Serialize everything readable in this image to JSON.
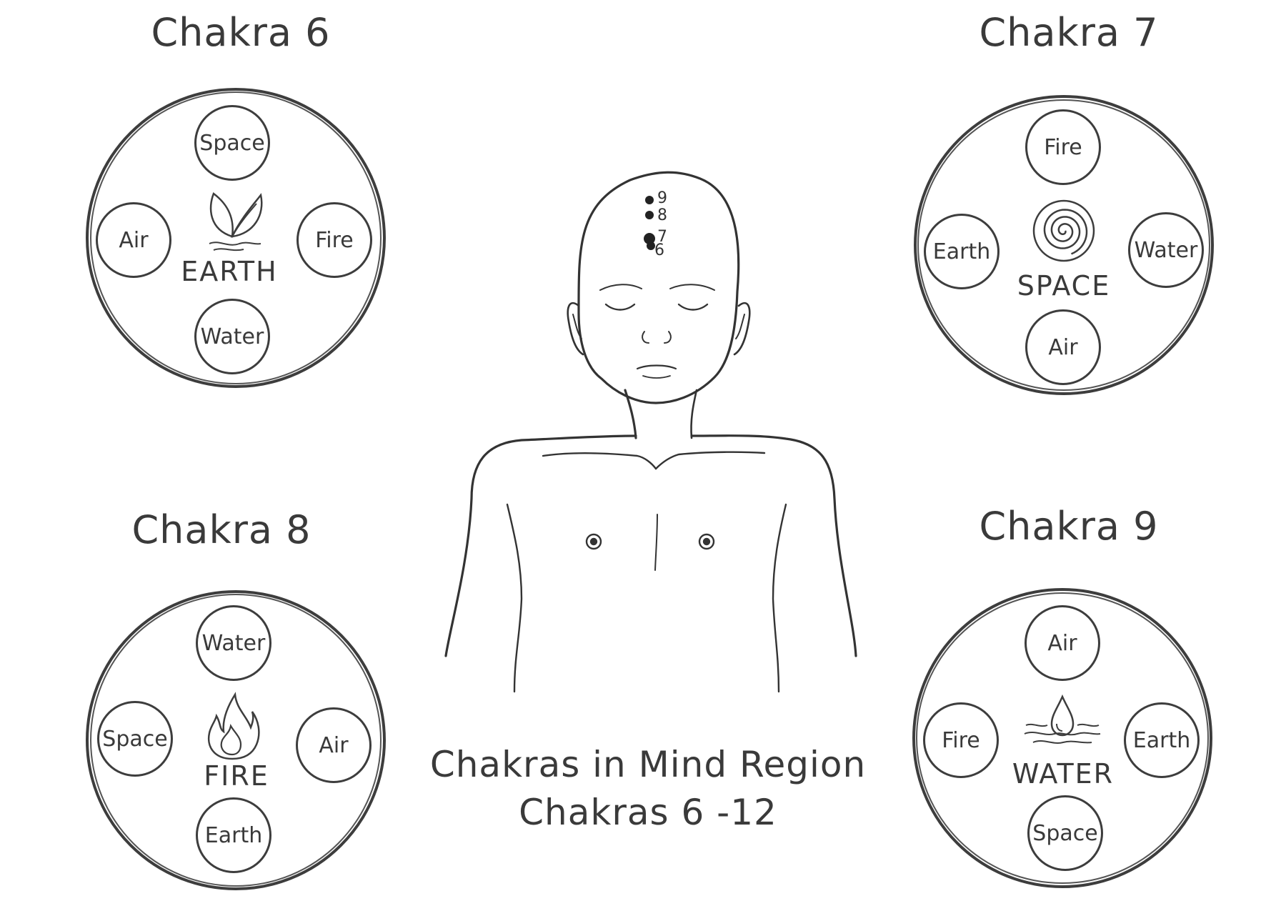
{
  "wheels": [
    {
      "title": "Chakra 6",
      "center": "EARTH",
      "center_icon": "leaf-icon",
      "top": "Space",
      "left": "Air",
      "right": "Fire",
      "bottom": "Water"
    },
    {
      "title": "Chakra 7",
      "center": "SPACE",
      "center_icon": "spiral-icon",
      "top": "Fire",
      "left": "Earth",
      "right": "Water",
      "bottom": "Air"
    },
    {
      "title": "Chakra 8",
      "center": "FIRE",
      "center_icon": "flame-icon",
      "top": "Water",
      "left": "Space",
      "right": "Air",
      "bottom": "Earth"
    },
    {
      "title": "Chakra 9",
      "center": "WATER",
      "center_icon": "water-drop-icon",
      "top": "Air",
      "left": "Fire",
      "right": "Earth",
      "bottom": "Space"
    }
  ],
  "figure": {
    "point_labels": [
      "9",
      "8",
      "7",
      "6"
    ]
  },
  "caption": {
    "line1": "Chakras in Mind Region",
    "line2": "Chakras 6 -12"
  },
  "colors": {
    "ink": "#3d3d3d",
    "background": "#ffffff"
  }
}
